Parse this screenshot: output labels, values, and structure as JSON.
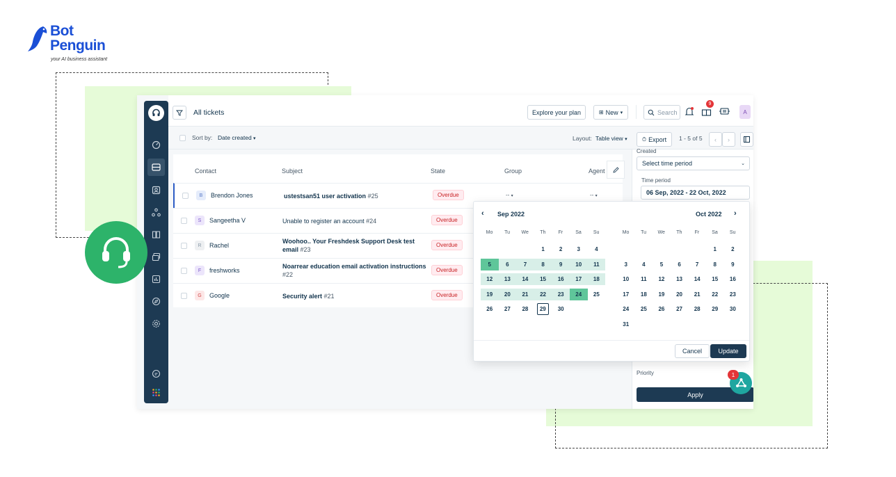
{
  "brand": {
    "name_line1": "Bot",
    "name_line2": "Penguin",
    "tagline": "your AI business assistant"
  },
  "header": {
    "title": "All tickets",
    "explore_label": "Explore your plan",
    "new_label": "New",
    "search_placeholder": "Search",
    "gift_badge": "9",
    "avatar_letter": "A"
  },
  "subbar": {
    "sort_prefix": "Sort by:",
    "sort_value": "Date created",
    "layout_prefix": "Layout:",
    "layout_value": "Table view",
    "export_label": "Export",
    "pagination": "1 - 5 of 5"
  },
  "table": {
    "columns": [
      "Contact",
      "Subject",
      "State",
      "Group",
      "Agent"
    ],
    "rows": [
      {
        "initial": "B",
        "contact": "Brendon Jones",
        "subject": "ustestsan51 user activation",
        "num": "#25",
        "state": "Overdue",
        "group": "--",
        "agent": "--"
      },
      {
        "initial": "S",
        "contact": "Sangeetha V",
        "subject": "Unable to register an account",
        "num": "#24",
        "state": "Overdue"
      },
      {
        "initial": "R",
        "contact": "Rachel",
        "subject": "Woohoo.. Your Freshdesk Support Desk test email",
        "num": "#23",
        "state": "Overdue"
      },
      {
        "initial": "F",
        "contact": "freshworks",
        "subject": "Noarrear education email activation instructions",
        "num": "#22",
        "state": "Overdue"
      },
      {
        "initial": "G",
        "contact": "Google",
        "subject": "Security alert",
        "num": "#21",
        "state": "Overdue"
      }
    ]
  },
  "filters": {
    "created_label": "Created",
    "created_value": "Select time period",
    "time_period_label": "Time period",
    "time_period_value": "06 Sep, 2022 - 22 Oct, 2022",
    "priority_label": "Priority",
    "apply_label": "Apply",
    "notif_count": "1"
  },
  "calendar": {
    "weekdays": [
      "Mo",
      "Tu",
      "We",
      "Th",
      "Fr",
      "Sa",
      "Su"
    ],
    "left_month": "Sep  2022",
    "right_month": "Oct  2022",
    "cancel_label": "Cancel",
    "update_label": "Update",
    "left_days": [
      "1",
      "2",
      "3",
      "4",
      "5",
      "6",
      "7",
      "8",
      "9",
      "10",
      "11",
      "12",
      "13",
      "14",
      "15",
      "16",
      "17",
      "18",
      "19",
      "20",
      "21",
      "22",
      "23",
      "24",
      "25",
      "26",
      "27",
      "28",
      "29",
      "30"
    ],
    "right_days": [
      "1",
      "2",
      "3",
      "4",
      "5",
      "6",
      "7",
      "8",
      "9",
      "10",
      "11",
      "12",
      "13",
      "14",
      "15",
      "16",
      "17",
      "18",
      "19",
      "20",
      "21",
      "22",
      "23",
      "24",
      "25",
      "26",
      "27",
      "28",
      "29",
      "30",
      "31"
    ],
    "range_start": 5,
    "range_end": 24,
    "today": 29
  }
}
